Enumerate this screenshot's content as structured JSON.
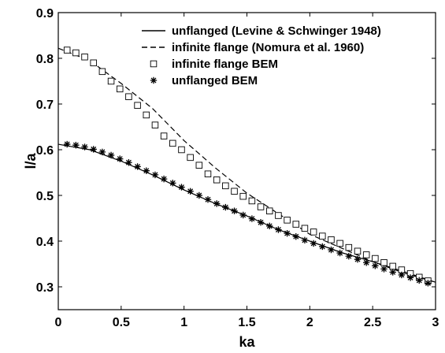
{
  "chart_data": {
    "type": "line",
    "xlabel": "ka",
    "ylabel": "l/a",
    "xlim": [
      0,
      3
    ],
    "ylim": [
      0.25,
      0.9
    ],
    "x_ticks": [
      0,
      0.5,
      1,
      1.5,
      2,
      2.5,
      3
    ],
    "x_tick_labels": [
      "0",
      "0.5",
      "1",
      "1.5",
      "2",
      "2.5",
      "3"
    ],
    "y_ticks": [
      0.3,
      0.4,
      0.5,
      0.6,
      0.7,
      0.8,
      0.9
    ],
    "y_tick_labels": [
      "0.3",
      "0.4",
      "0.5",
      "0.6",
      "0.7",
      "0.8",
      "0.9"
    ],
    "grid": false,
    "legend_position": "top-right",
    "series": [
      {
        "name": "unflanged (Levine & Schwinger 1948)",
        "style": "solid-line",
        "x": [
          0,
          0.25,
          0.5,
          0.75,
          1.0,
          1.25,
          1.5,
          1.75,
          2.0,
          2.25,
          2.5,
          2.75,
          3.0
        ],
        "y": [
          0.612,
          0.6,
          0.575,
          0.545,
          0.512,
          0.482,
          0.455,
          0.425,
          0.4,
          0.375,
          0.355,
          0.333,
          0.31
        ]
      },
      {
        "name": "infinite flange (Nomura et al. 1960)",
        "style": "dashed-line",
        "x": [
          0,
          0.25,
          0.5,
          0.75,
          1.0,
          1.25,
          1.5,
          1.75,
          2.0,
          2.25,
          2.5,
          2.75,
          3.0
        ],
        "y": [
          0.822,
          0.795,
          0.745,
          0.69,
          0.62,
          0.56,
          0.505,
          0.46,
          0.415,
          0.385,
          0.355,
          0.33,
          0.31
        ]
      },
      {
        "name": "infinite flange BEM",
        "style": "open-square",
        "x": [
          0.07,
          0.14,
          0.21,
          0.28,
          0.35,
          0.42,
          0.49,
          0.56,
          0.63,
          0.7,
          0.77,
          0.84,
          0.91,
          0.98,
          1.05,
          1.12,
          1.19,
          1.26,
          1.33,
          1.4,
          1.47,
          1.54,
          1.61,
          1.68,
          1.75,
          1.82,
          1.89,
          1.96,
          2.03,
          2.1,
          2.17,
          2.24,
          2.31,
          2.38,
          2.45,
          2.52,
          2.59,
          2.66,
          2.73,
          2.8,
          2.87,
          2.94
        ],
        "y": [
          0.818,
          0.812,
          0.803,
          0.79,
          0.771,
          0.75,
          0.733,
          0.716,
          0.697,
          0.676,
          0.654,
          0.63,
          0.614,
          0.6,
          0.583,
          0.566,
          0.547,
          0.534,
          0.521,
          0.509,
          0.498,
          0.488,
          0.475,
          0.466,
          0.456,
          0.446,
          0.437,
          0.428,
          0.42,
          0.411,
          0.403,
          0.395,
          0.386,
          0.378,
          0.37,
          0.362,
          0.353,
          0.345,
          0.337,
          0.329,
          0.321,
          0.313
        ]
      },
      {
        "name": "unflanged BEM",
        "style": "asterisk",
        "x": [
          0.07,
          0.14,
          0.21,
          0.28,
          0.35,
          0.42,
          0.49,
          0.56,
          0.63,
          0.7,
          0.77,
          0.84,
          0.91,
          0.98,
          1.05,
          1.12,
          1.19,
          1.26,
          1.33,
          1.4,
          1.47,
          1.54,
          1.61,
          1.68,
          1.75,
          1.82,
          1.89,
          1.96,
          2.03,
          2.1,
          2.17,
          2.24,
          2.31,
          2.38,
          2.45,
          2.52,
          2.59,
          2.66,
          2.73,
          2.8,
          2.87,
          2.94
        ],
        "y": [
          0.612,
          0.61,
          0.606,
          0.601,
          0.595,
          0.588,
          0.58,
          0.572,
          0.563,
          0.554,
          0.545,
          0.536,
          0.527,
          0.518,
          0.509,
          0.5,
          0.491,
          0.482,
          0.474,
          0.466,
          0.457,
          0.449,
          0.441,
          0.433,
          0.425,
          0.417,
          0.41,
          0.402,
          0.395,
          0.388,
          0.381,
          0.374,
          0.367,
          0.36,
          0.353,
          0.346,
          0.339,
          0.332,
          0.326,
          0.32,
          0.314,
          0.308
        ]
      }
    ]
  }
}
